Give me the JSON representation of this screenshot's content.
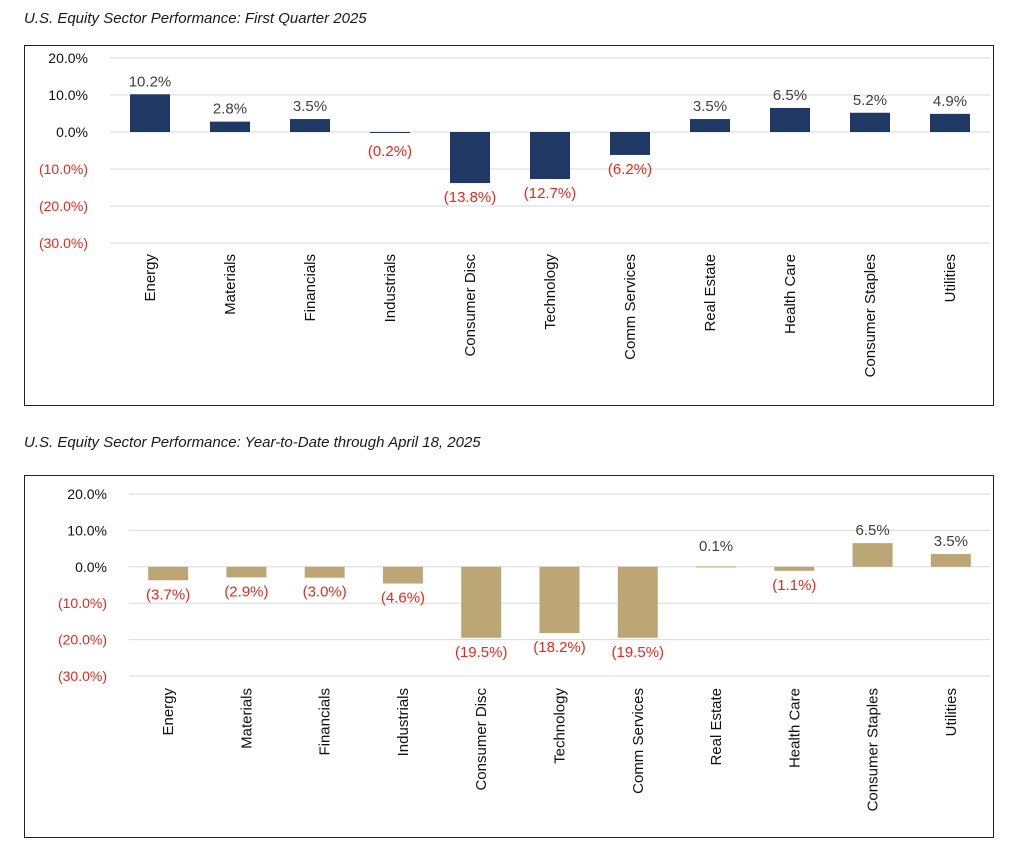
{
  "chart_data": [
    {
      "type": "bar",
      "title": "U.S. Equity Sector Performance:  First Quarter 2025",
      "categories": [
        "Energy",
        "Materials",
        "Financials",
        "Industrials",
        "Consumer Disc",
        "Technology",
        "Comm  Services",
        "Real Estate",
        "Health Care",
        "Consumer Staples",
        "Utilities"
      ],
      "values": [
        10.2,
        2.8,
        3.5,
        -0.2,
        -13.8,
        -12.7,
        -6.2,
        3.5,
        6.5,
        5.2,
        4.9
      ],
      "data_labels": [
        "10.2%",
        "2.8%",
        "3.5%",
        "(0.2%)",
        "(13.8%)",
        "(12.7%)",
        "(6.2%)",
        "3.5%",
        "6.5%",
        "5.2%",
        "4.9%"
      ],
      "yticks": [
        "20.0%",
        "10.0%",
        "0.0%",
        "(10.0%)",
        "(20.0%)",
        "(30.0%)"
      ],
      "ylim": [
        -30,
        20
      ],
      "grid": true,
      "bar_color": "#1f3864",
      "positive_color": "#404040",
      "negative_color": "#e8281c"
    },
    {
      "type": "bar",
      "title": "U.S. Equity Sector Performance:  Year-to-Date through April 18, 2025",
      "categories": [
        "Energy",
        "Materials",
        "Financials",
        "Industrials",
        "Consumer Disc",
        "Technology",
        "Comm  Services",
        "Real Estate",
        "Health Care",
        "Consumer Staples",
        "Utilities"
      ],
      "values": [
        -3.7,
        -2.9,
        -3.0,
        -4.6,
        -19.5,
        -18.2,
        -19.5,
        0.1,
        -1.1,
        6.5,
        3.5
      ],
      "data_labels": [
        "(3.7%)",
        "(2.9%)",
        "(3.0%)",
        "(4.6%)",
        "(19.5%)",
        "(18.2%)",
        "(19.5%)",
        "0.1%",
        "(1.1%)",
        "6.5%",
        "3.5%"
      ],
      "yticks": [
        "20.0%",
        "10.0%",
        "0.0%",
        "(10.0%)",
        "(20.0%)",
        "(30.0%)"
      ],
      "ylim": [
        -30,
        20
      ],
      "grid": true,
      "bar_color": "#bca676",
      "positive_color": "#404040",
      "negative_color": "#e8281c"
    }
  ]
}
